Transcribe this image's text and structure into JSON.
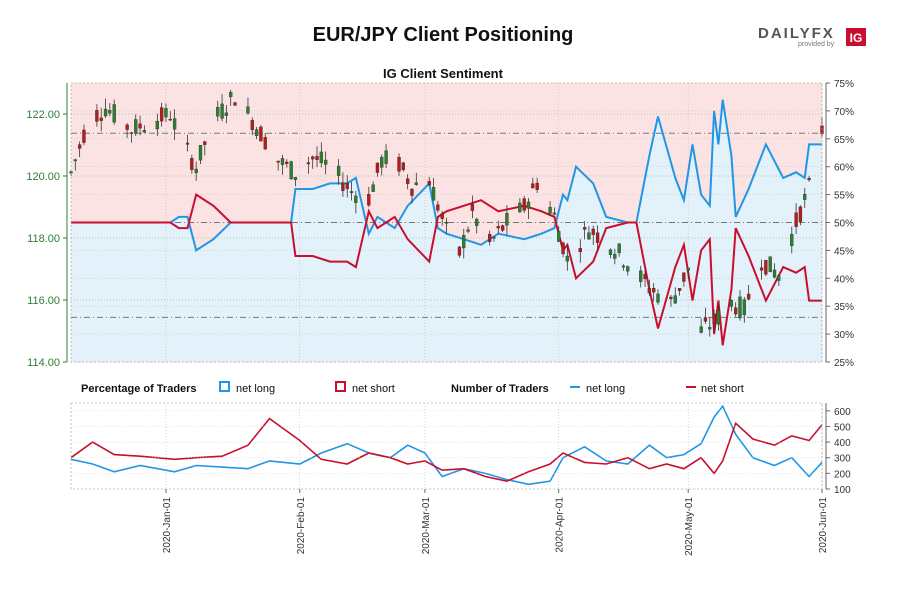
{
  "header": {
    "title": "EUR/JPY Client Positioning",
    "logo_text": "DAILYFX",
    "logo_sub": "provided by",
    "logo_badge": "IG"
  },
  "colors": {
    "long": "#2196e6",
    "short": "#c8102e",
    "candle_up": "#2e7d32",
    "candle_down": "#b71c1c",
    "price_axis": "#2e7d32",
    "short_bg": "#fbe3e3",
    "long_bg": "#e3f1fb"
  },
  "legend": {
    "pct_title": "Percentage of Traders",
    "pct_long": "net long",
    "pct_short": "net short",
    "num_title": "Number of Traders",
    "num_long": "net long",
    "num_short": "net short"
  },
  "chart_data": [
    {
      "type": "candlestick",
      "title": "IG Client Sentiment",
      "ylim": [
        114.0,
        123.0
      ],
      "y2lim": [
        25,
        75
      ],
      "yticks": [
        "114.00",
        "116.00",
        "118.00",
        "120.00",
        "122.00"
      ],
      "y2ticks": [
        "25%",
        "30%",
        "35%",
        "40%",
        "45%",
        "50%",
        "55%",
        "60%",
        "65%",
        "70%",
        "75%"
      ],
      "reference_lines_pct": [
        33,
        50,
        66
      ],
      "x_range": [
        "2019-12-10",
        "2020-06-01"
      ],
      "price_anchors": [
        [
          "2019-12-10",
          120.1
        ],
        [
          "2019-12-14",
          121.8
        ],
        [
          "2019-12-18",
          122.2
        ],
        [
          "2019-12-24",
          121.5
        ],
        [
          "2020-01-02",
          122.0
        ],
        [
          "2020-01-05",
          121.0
        ],
        [
          "2020-01-08",
          120.3
        ],
        [
          "2020-01-12",
          121.8
        ],
        [
          "2020-01-17",
          122.6
        ],
        [
          "2020-01-22",
          121.6
        ],
        [
          "2020-01-27",
          120.5
        ],
        [
          "2020-01-31",
          120.1
        ],
        [
          "2020-02-04",
          120.6
        ],
        [
          "2020-02-08",
          120.3
        ],
        [
          "2020-02-13",
          119.5
        ],
        [
          "2020-02-17",
          119.3
        ],
        [
          "2020-02-20",
          120.5
        ],
        [
          "2020-02-23",
          120.6
        ],
        [
          "2020-02-27",
          119.7
        ],
        [
          "2020-03-02",
          119.9
        ],
        [
          "2020-03-06",
          118.2
        ],
        [
          "2020-03-09",
          117.5
        ],
        [
          "2020-03-12",
          118.8
        ],
        [
          "2020-03-16",
          117.8
        ],
        [
          "2020-03-20",
          118.5
        ],
        [
          "2020-03-24",
          119.0
        ],
        [
          "2020-03-27",
          119.8
        ],
        [
          "2020-03-31",
          118.7
        ],
        [
          "2020-04-03",
          117.3
        ],
        [
          "2020-04-08",
          118.3
        ],
        [
          "2020-04-13",
          117.8
        ],
        [
          "2020-04-17",
          117.2
        ],
        [
          "2020-04-22",
          116.4
        ],
        [
          "2020-04-27",
          115.9
        ],
        [
          "2020-05-01",
          117.0
        ],
        [
          "2020-05-04",
          115.0
        ],
        [
          "2020-05-07",
          115.3
        ],
        [
          "2020-05-11",
          115.9
        ],
        [
          "2020-05-14",
          115.7
        ],
        [
          "2020-05-18",
          117.3
        ],
        [
          "2020-05-22",
          116.8
        ],
        [
          "2020-05-26",
          118.5
        ],
        [
          "2020-05-29",
          119.6
        ],
        [
          "2020-06-01",
          121.5
        ]
      ],
      "series": [
        {
          "name": "net long",
          "unit": "percent",
          "points": [
            [
              "2019-12-10",
              50
            ],
            [
              "2019-12-14",
              50
            ],
            [
              "2019-12-18",
              50
            ],
            [
              "2019-12-27",
              50
            ],
            [
              "2020-01-02",
              50
            ],
            [
              "2020-01-04",
              51
            ],
            [
              "2020-01-06",
              51
            ],
            [
              "2020-01-08",
              45
            ],
            [
              "2020-01-12",
              47
            ],
            [
              "2020-01-16",
              50
            ],
            [
              "2020-01-20",
              50
            ],
            [
              "2020-01-24",
              50
            ],
            [
              "2020-01-30",
              50
            ],
            [
              "2020-01-31",
              56
            ],
            [
              "2020-02-04",
              56
            ],
            [
              "2020-02-08",
              57
            ],
            [
              "2020-02-12",
              57
            ],
            [
              "2020-02-14",
              58
            ],
            [
              "2020-02-17",
              48
            ],
            [
              "2020-02-19",
              51
            ],
            [
              "2020-02-23",
              49
            ],
            [
              "2020-02-26",
              53
            ],
            [
              "2020-03-02",
              57
            ],
            [
              "2020-03-04",
              49
            ],
            [
              "2020-03-06",
              48
            ],
            [
              "2020-03-10",
              47
            ],
            [
              "2020-03-14",
              46
            ],
            [
              "2020-03-18",
              48
            ],
            [
              "2020-03-24",
              47
            ],
            [
              "2020-03-28",
              48
            ],
            [
              "2020-03-31",
              49
            ],
            [
              "2020-04-02",
              55
            ],
            [
              "2020-04-03",
              54
            ],
            [
              "2020-04-05",
              60
            ],
            [
              "2020-04-09",
              57
            ],
            [
              "2020-04-12",
              51
            ],
            [
              "2020-04-17",
              50
            ],
            [
              "2020-04-19",
              50
            ],
            [
              "2020-04-22",
              62
            ],
            [
              "2020-04-24",
              69
            ],
            [
              "2020-04-28",
              58
            ],
            [
              "2020-04-30",
              54
            ],
            [
              "2020-05-02",
              64
            ],
            [
              "2020-05-04",
              55
            ],
            [
              "2020-05-06",
              53
            ],
            [
              "2020-05-07",
              70
            ],
            [
              "2020-05-08",
              64
            ],
            [
              "2020-05-09",
              72
            ],
            [
              "2020-05-11",
              62
            ],
            [
              "2020-05-12",
              51
            ],
            [
              "2020-05-15",
              56
            ],
            [
              "2020-05-19",
              64
            ],
            [
              "2020-05-23",
              58
            ],
            [
              "2020-05-26",
              59
            ],
            [
              "2020-05-28",
              58
            ],
            [
              "2020-05-29",
              64
            ],
            [
              "2020-06-01",
              64
            ]
          ]
        },
        {
          "name": "net short",
          "unit": "percent",
          "points": [
            [
              "2019-12-10",
              50
            ],
            [
              "2019-12-14",
              50
            ],
            [
              "2019-12-18",
              50
            ],
            [
              "2019-12-27",
              50
            ],
            [
              "2020-01-02",
              50
            ],
            [
              "2020-01-04",
              49
            ],
            [
              "2020-01-06",
              49
            ],
            [
              "2020-01-08",
              55
            ],
            [
              "2020-01-12",
              53
            ],
            [
              "2020-01-16",
              50
            ],
            [
              "2020-01-20",
              50
            ],
            [
              "2020-01-24",
              50
            ],
            [
              "2020-01-30",
              50
            ],
            [
              "2020-01-31",
              44
            ],
            [
              "2020-02-04",
              44
            ],
            [
              "2020-02-08",
              43
            ],
            [
              "2020-02-12",
              43
            ],
            [
              "2020-02-14",
              42
            ],
            [
              "2020-02-17",
              52
            ],
            [
              "2020-02-19",
              49
            ],
            [
              "2020-02-23",
              51
            ],
            [
              "2020-02-26",
              47
            ],
            [
              "2020-03-02",
              43
            ],
            [
              "2020-03-04",
              51
            ],
            [
              "2020-03-06",
              52
            ],
            [
              "2020-03-10",
              53
            ],
            [
              "2020-03-14",
              54
            ],
            [
              "2020-03-18",
              52
            ],
            [
              "2020-03-24",
              53
            ],
            [
              "2020-03-28",
              52
            ],
            [
              "2020-03-31",
              51
            ],
            [
              "2020-04-02",
              45
            ],
            [
              "2020-04-03",
              46
            ],
            [
              "2020-04-05",
              40
            ],
            [
              "2020-04-09",
              43
            ],
            [
              "2020-04-12",
              49
            ],
            [
              "2020-04-17",
              50
            ],
            [
              "2020-04-19",
              50
            ],
            [
              "2020-04-22",
              38
            ],
            [
              "2020-04-24",
              31
            ],
            [
              "2020-04-28",
              42
            ],
            [
              "2020-04-30",
              46
            ],
            [
              "2020-05-02",
              36
            ],
            [
              "2020-05-04",
              45
            ],
            [
              "2020-05-06",
              47
            ],
            [
              "2020-05-07",
              30
            ],
            [
              "2020-05-08",
              36
            ],
            [
              "2020-05-09",
              28
            ],
            [
              "2020-05-11",
              38
            ],
            [
              "2020-05-12",
              49
            ],
            [
              "2020-05-15",
              44
            ],
            [
              "2020-05-19",
              36
            ],
            [
              "2020-05-23",
              42
            ],
            [
              "2020-05-26",
              41
            ],
            [
              "2020-05-28",
              42
            ],
            [
              "2020-05-29",
              36
            ],
            [
              "2020-06-01",
              36
            ]
          ]
        }
      ]
    },
    {
      "type": "line",
      "ylim": [
        100,
        650
      ],
      "yticks": [
        "100",
        "200",
        "300",
        "400",
        "500",
        "600"
      ],
      "x_range": [
        "2019-12-10",
        "2020-06-01"
      ],
      "xticks": [
        "2020-Jan-01",
        "2020-Feb-01",
        "2020-Mar-01",
        "2020-Apr-01",
        "2020-May-01",
        "2020-Jun-01"
      ],
      "series": [
        {
          "name": "net long",
          "points": [
            [
              "2019-12-10",
              290
            ],
            [
              "2019-12-15",
              260
            ],
            [
              "2019-12-20",
              210
            ],
            [
              "2019-12-26",
              250
            ],
            [
              "2020-01-03",
              210
            ],
            [
              "2020-01-08",
              250
            ],
            [
              "2020-01-14",
              240
            ],
            [
              "2020-01-20",
              230
            ],
            [
              "2020-01-25",
              280
            ],
            [
              "2020-02-01",
              260
            ],
            [
              "2020-02-06",
              330
            ],
            [
              "2020-02-12",
              390
            ],
            [
              "2020-02-17",
              330
            ],
            [
              "2020-02-22",
              300
            ],
            [
              "2020-02-26",
              380
            ],
            [
              "2020-03-01",
              330
            ],
            [
              "2020-03-05",
              180
            ],
            [
              "2020-03-10",
              230
            ],
            [
              "2020-03-15",
              200
            ],
            [
              "2020-03-20",
              160
            ],
            [
              "2020-03-25",
              130
            ],
            [
              "2020-03-30",
              150
            ],
            [
              "2020-04-02",
              300
            ],
            [
              "2020-04-07",
              370
            ],
            [
              "2020-04-12",
              280
            ],
            [
              "2020-04-17",
              260
            ],
            [
              "2020-04-22",
              380
            ],
            [
              "2020-04-26",
              300
            ],
            [
              "2020-04-30",
              320
            ],
            [
              "2020-05-04",
              390
            ],
            [
              "2020-05-07",
              560
            ],
            [
              "2020-05-09",
              630
            ],
            [
              "2020-05-12",
              450
            ],
            [
              "2020-05-16",
              300
            ],
            [
              "2020-05-21",
              250
            ],
            [
              "2020-05-25",
              300
            ],
            [
              "2020-05-29",
              180
            ],
            [
              "2020-06-01",
              270
            ]
          ]
        },
        {
          "name": "net short",
          "points": [
            [
              "2019-12-10",
              300
            ],
            [
              "2019-12-15",
              400
            ],
            [
              "2019-12-20",
              320
            ],
            [
              "2019-12-26",
              310
            ],
            [
              "2020-01-03",
              290
            ],
            [
              "2020-01-08",
              300
            ],
            [
              "2020-01-14",
              310
            ],
            [
              "2020-01-20",
              380
            ],
            [
              "2020-01-25",
              550
            ],
            [
              "2020-02-01",
              410
            ],
            [
              "2020-02-06",
              290
            ],
            [
              "2020-02-12",
              260
            ],
            [
              "2020-02-17",
              330
            ],
            [
              "2020-02-22",
              300
            ],
            [
              "2020-02-26",
              260
            ],
            [
              "2020-03-01",
              280
            ],
            [
              "2020-03-05",
              220
            ],
            [
              "2020-03-10",
              230
            ],
            [
              "2020-03-15",
              180
            ],
            [
              "2020-03-20",
              150
            ],
            [
              "2020-03-25",
              210
            ],
            [
              "2020-03-30",
              260
            ],
            [
              "2020-04-02",
              330
            ],
            [
              "2020-04-07",
              270
            ],
            [
              "2020-04-12",
              260
            ],
            [
              "2020-04-17",
              300
            ],
            [
              "2020-04-22",
              230
            ],
            [
              "2020-04-26",
              260
            ],
            [
              "2020-04-30",
              230
            ],
            [
              "2020-05-04",
              300
            ],
            [
              "2020-05-07",
              200
            ],
            [
              "2020-05-09",
              280
            ],
            [
              "2020-05-12",
              520
            ],
            [
              "2020-05-16",
              420
            ],
            [
              "2020-05-21",
              380
            ],
            [
              "2020-05-25",
              440
            ],
            [
              "2020-05-29",
              410
            ],
            [
              "2020-06-01",
              510
            ]
          ]
        }
      ]
    }
  ]
}
